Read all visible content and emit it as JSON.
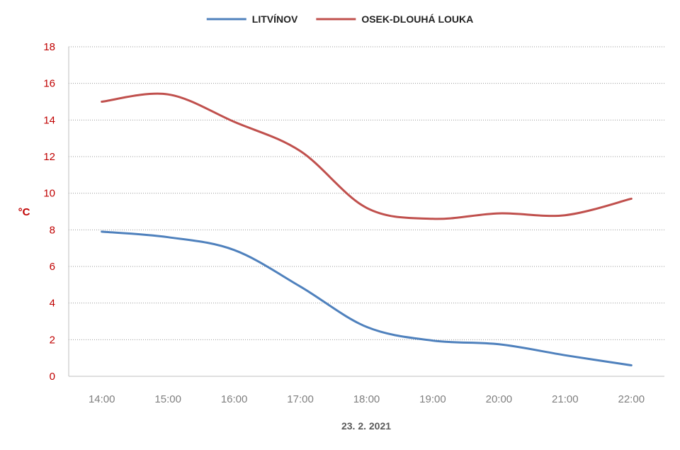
{
  "chart_data": {
    "type": "line",
    "categories": [
      "14:00",
      "15:00",
      "16:00",
      "17:00",
      "18:00",
      "19:00",
      "20:00",
      "21:00",
      "22:00"
    ],
    "series": [
      {
        "name": "LITVÍNOV",
        "color": "#4f81bd",
        "values": [
          7.9,
          7.6,
          6.9,
          4.9,
          2.7,
          1.95,
          1.75,
          1.15,
          0.6
        ]
      },
      {
        "name": "OSEK-DLOUHÁ LOUKA",
        "color": "#c0504d",
        "values": [
          15.0,
          15.4,
          13.9,
          12.3,
          9.2,
          8.6,
          8.9,
          8.8,
          9.7
        ]
      }
    ],
    "yticks": [
      "0",
      "2",
      "4",
      "6",
      "8",
      "10",
      "12",
      "14",
      "16",
      "18"
    ],
    "ylim": [
      0,
      18
    ],
    "ylabel": "°C",
    "xlabel": "23. 2. 2021",
    "grid": true,
    "legend_position": "top-center",
    "axis_text_color": "#c00000",
    "category_text_color": "#7f7f7f"
  }
}
